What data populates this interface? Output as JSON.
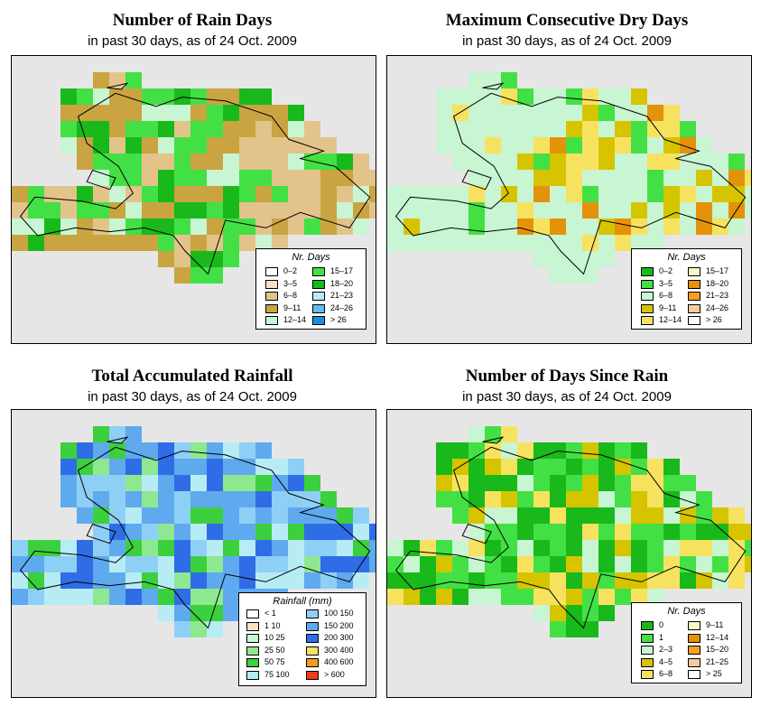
{
  "panels": [
    {
      "title": "Number of Rain Days",
      "subtitle": "in past 30 days, as of  24 Oct. 2009",
      "legend_title": "Nr. Days",
      "legend": [
        {
          "label": "0–2",
          "color": "#ffffff"
        },
        {
          "label": "3–5",
          "color": "#f3e3c0"
        },
        {
          "label": "6–8",
          "color": "#e2c48a"
        },
        {
          "label": "9–11",
          "color": "#c9a441"
        },
        {
          "label": "12–14",
          "color": "#c8f5d2"
        },
        {
          "label": "15–17",
          "color": "#43e045"
        },
        {
          "label": "18–20",
          "color": "#19b81b"
        },
        {
          "label": "21–23",
          "color": "#b8ecf5"
        },
        {
          "label": "24–26",
          "color": "#5fbcec"
        },
        {
          "label": "> 26",
          "color": "#1a8fd8"
        }
      ]
    },
    {
      "title": "Maximum Consecutive Dry Days",
      "subtitle": "in past 30 days, as of  24 Oct. 2009",
      "legend_title": "Nr. Days",
      "legend": [
        {
          "label": "0–2",
          "color": "#19b81b"
        },
        {
          "label": "3–5",
          "color": "#43e045"
        },
        {
          "label": "6–8",
          "color": "#c8f5d2"
        },
        {
          "label": "9–11",
          "color": "#d6c400"
        },
        {
          "label": "12–14",
          "color": "#f7e260"
        },
        {
          "label": "15–17",
          "color": "#fcf7c8"
        },
        {
          "label": "18–20",
          "color": "#e3920a"
        },
        {
          "label": "21–23",
          "color": "#f5a11e"
        },
        {
          "label": "24–26",
          "color": "#f8c9a0"
        },
        {
          "label": "> 26",
          "color": "#ffffff"
        }
      ]
    },
    {
      "title": "Total Accumulated Rainfall",
      "subtitle": "in past 30 days, as of  24 Oct. 2009",
      "legend_title": "Rainfall (mm)",
      "legend": [
        {
          "label": "< 1",
          "color": "#ffffff"
        },
        {
          "label": "1    10",
          "color": "#f3e3c0"
        },
        {
          "label": "10    25",
          "color": "#c8f5d2"
        },
        {
          "label": "25    50",
          "color": "#8ee88f"
        },
        {
          "label": "50    75",
          "color": "#3ccf3e"
        },
        {
          "label": "75  100",
          "color": "#b8ecf5"
        },
        {
          "label": "100  150",
          "color": "#8ed0f5"
        },
        {
          "label": "150  200",
          "color": "#5fa9ef"
        },
        {
          "label": "200  300",
          "color": "#2f6de6"
        },
        {
          "label": "300  400",
          "color": "#f7e260"
        },
        {
          "label": "400  600",
          "color": "#f59a1e"
        },
        {
          "label": "> 600",
          "color": "#f03a18"
        }
      ]
    },
    {
      "title": "Number of Days Since Rain",
      "subtitle": "in past 30 days, as of  24 Oct. 2009",
      "legend_title": "Nr. Days",
      "legend": [
        {
          "label": "0",
          "color": "#19b81b"
        },
        {
          "label": "1",
          "color": "#43e045"
        },
        {
          "label": "2–3",
          "color": "#c8f5d2"
        },
        {
          "label": "4–5",
          "color": "#d6c400"
        },
        {
          "label": "6–8",
          "color": "#f7e260"
        },
        {
          "label": "9–11",
          "color": "#fcf7c8"
        },
        {
          "label": "12–14",
          "color": "#e3920a"
        },
        {
          "label": "15–20",
          "color": "#f5a11e"
        },
        {
          "label": "21–25",
          "color": "#f8c9a0"
        },
        {
          "label": "> 25",
          "color": "#ffffff"
        }
      ]
    }
  ]
}
